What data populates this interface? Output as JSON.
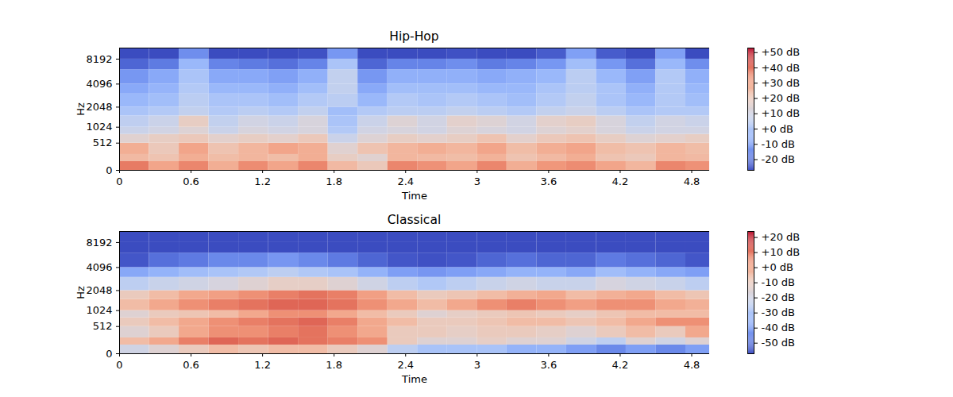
{
  "chart_data": [
    {
      "type": "heatmap",
      "title": "Hip-Hop",
      "x_label": "Time",
      "y_label": "Hz",
      "xlim": [
        0,
        4.95
      ],
      "xticks": [
        0,
        0.6,
        1.2,
        1.8,
        2.4,
        3,
        3.6,
        4.2,
        4.8
      ],
      "ylim": [
        0,
        11025
      ],
      "yticks": [
        0,
        512,
        1024,
        2048,
        4096,
        8192
      ],
      "log": "y",
      "color": "coolwarm",
      "cells": {
        "x_edges": [
          0,
          0.25,
          0.5,
          0.75,
          1.0,
          1.25,
          1.5,
          1.75,
          2.0,
          2.25,
          2.5,
          2.75,
          3.0,
          3.25,
          3.5,
          3.75,
          4.0,
          4.25,
          4.5,
          4.75,
          4.95
        ],
        "y_edges": [
          0,
          128,
          256,
          512,
          768,
          1024,
          1536,
          2048,
          3072,
          4096,
          6144,
          8192,
          11025
        ],
        "values": [
          [
            38,
            30,
            36,
            28,
            35,
            30,
            36,
            25,
            20,
            36,
            34,
            30,
            36,
            28,
            33,
            35,
            30,
            26,
            36,
            34
          ],
          [
            25,
            22,
            28,
            24,
            26,
            24,
            28,
            18,
            15,
            26,
            25,
            24,
            27,
            22,
            25,
            28,
            22,
            20,
            26,
            25
          ],
          [
            28,
            20,
            30,
            22,
            26,
            30,
            28,
            15,
            22,
            26,
            28,
            26,
            30,
            24,
            28,
            30,
            24,
            22,
            26,
            24
          ],
          [
            15,
            18,
            20,
            16,
            18,
            16,
            20,
            8,
            14,
            18,
            16,
            18,
            22,
            16,
            20,
            22,
            18,
            14,
            16,
            18
          ],
          [
            8,
            10,
            14,
            8,
            12,
            10,
            12,
            2,
            10,
            12,
            10,
            14,
            12,
            10,
            14,
            16,
            12,
            8,
            10,
            10
          ],
          [
            5,
            8,
            18,
            6,
            10,
            8,
            12,
            0,
            8,
            14,
            10,
            16,
            14,
            10,
            16,
            18,
            12,
            6,
            10,
            8
          ],
          [
            0,
            2,
            6,
            2,
            4,
            2,
            6,
            -2,
            2,
            4,
            4,
            6,
            4,
            2,
            6,
            8,
            4,
            0,
            2,
            2
          ],
          [
            -4,
            -2,
            4,
            0,
            0,
            -2,
            2,
            4,
            -4,
            2,
            0,
            2,
            0,
            -2,
            2,
            6,
            0,
            -4,
            2,
            -2
          ],
          [
            -8,
            -5,
            2,
            -4,
            -4,
            -6,
            -2,
            6,
            -8,
            -2,
            -2,
            -2,
            -4,
            -4,
            0,
            4,
            0,
            -6,
            2,
            -4
          ],
          [
            -12,
            -8,
            0,
            -8,
            -8,
            -10,
            -6,
            6,
            -12,
            -6,
            -6,
            -6,
            -8,
            -6,
            -4,
            4,
            -4,
            -10,
            2,
            -6
          ],
          [
            -22,
            -18,
            -4,
            -16,
            -18,
            -20,
            -16,
            0,
            -22,
            -16,
            -16,
            -14,
            -18,
            -16,
            -12,
            -2,
            -12,
            -20,
            -4,
            -14
          ],
          [
            -27,
            -27,
            -14,
            -27,
            -27,
            -27,
            -26,
            -12,
            -27,
            -27,
            -27,
            -26,
            -27,
            -27,
            -24,
            -10,
            -24,
            -27,
            -10,
            -27
          ]
        ]
      },
      "colorbar": {
        "range": [
          -27,
          53
        ],
        "ticks": [
          {
            "value": 50,
            "label": "+50 dB"
          },
          {
            "value": 40,
            "label": "+40 dB"
          },
          {
            "value": 30,
            "label": "+30 dB"
          },
          {
            "value": 20,
            "label": "+20 dB"
          },
          {
            "value": 10,
            "label": "+10 dB"
          },
          {
            "value": 0,
            "label": "+0 dB"
          },
          {
            "value": -10,
            "label": "-10 dB"
          },
          {
            "value": -20,
            "label": "-20 dB"
          }
        ]
      }
    },
    {
      "type": "heatmap",
      "title": "Classical",
      "x_label": "Time",
      "y_label": "Hz",
      "xlim": [
        0,
        4.95
      ],
      "xticks": [
        0,
        0.6,
        1.2,
        1.8,
        2.4,
        3,
        3.6,
        4.2,
        4.8
      ],
      "ylim": [
        0,
        11025
      ],
      "yticks": [
        0,
        512,
        1024,
        2048,
        4096,
        8192
      ],
      "log": "y",
      "color": "coolwarm",
      "cells": {
        "x_edges": [
          0,
          0.25,
          0.5,
          0.75,
          1.0,
          1.25,
          1.5,
          1.75,
          2.0,
          2.25,
          2.5,
          2.75,
          3.0,
          3.25,
          3.5,
          3.75,
          4.0,
          4.25,
          4.5,
          4.75,
          4.95
        ],
        "y_edges": [
          0,
          128,
          256,
          512,
          768,
          1024,
          1536,
          2048,
          3072,
          4096,
          6144,
          8192,
          11025
        ],
        "values": [
          [
            -20,
            -15,
            -10,
            -5,
            -8,
            -5,
            -5,
            -10,
            -15,
            -25,
            -30,
            -30,
            -30,
            -35,
            -35,
            -40,
            -45,
            -40,
            -45,
            -40
          ],
          [
            -5,
            0,
            8,
            12,
            10,
            12,
            10,
            8,
            5,
            -10,
            -15,
            -15,
            -12,
            -15,
            -15,
            -20,
            -25,
            -15,
            -20,
            -15
          ],
          [
            -15,
            -10,
            0,
            5,
            5,
            8,
            10,
            5,
            0,
            -10,
            -10,
            -12,
            -10,
            -10,
            -12,
            -15,
            -10,
            -5,
            -10,
            0
          ],
          [
            -10,
            -5,
            0,
            5,
            8,
            10,
            12,
            8,
            0,
            -5,
            -10,
            -10,
            -8,
            -5,
            -5,
            -8,
            -5,
            0,
            5,
            5
          ],
          [
            -15,
            -10,
            -8,
            -5,
            0,
            5,
            5,
            0,
            -5,
            -10,
            -15,
            -12,
            -10,
            -8,
            -10,
            -12,
            -8,
            -5,
            -5,
            -5
          ],
          [
            -5,
            0,
            5,
            8,
            10,
            12,
            12,
            10,
            5,
            0,
            -5,
            0,
            5,
            8,
            5,
            2,
            5,
            5,
            0,
            -2
          ],
          [
            -10,
            -5,
            0,
            2,
            5,
            8,
            10,
            8,
            2,
            -5,
            -10,
            -8,
            -5,
            -2,
            0,
            -5,
            -2,
            0,
            -5,
            -8
          ],
          [
            -25,
            -22,
            -20,
            -18,
            -15,
            -12,
            -12,
            -15,
            -20,
            -25,
            -28,
            -25,
            -22,
            -20,
            -22,
            -22,
            -18,
            -20,
            -22,
            -25
          ],
          [
            -38,
            -35,
            -32,
            -30,
            -28,
            -25,
            -28,
            -30,
            -35,
            -40,
            -42,
            -40,
            -38,
            -35,
            -35,
            -38,
            -32,
            -35,
            -38,
            -40
          ],
          [
            -55,
            -50,
            -48,
            -45,
            -45,
            -42,
            -45,
            -48,
            -52,
            -55,
            -56,
            -55,
            -52,
            -50,
            -52,
            -52,
            -48,
            -50,
            -52,
            -55
          ],
          [
            -57,
            -57,
            -57,
            -57,
            -57,
            -57,
            -57,
            -57,
            -57,
            -57,
            -57,
            -57,
            -57,
            -57,
            -57,
            -57,
            -57,
            -57,
            -57,
            -57
          ],
          [
            -57,
            -57,
            -57,
            -57,
            -57,
            -57,
            -57,
            -57,
            -57,
            -57,
            -57,
            -57,
            -57,
            -57,
            -57,
            -57,
            -57,
            -57,
            -57,
            -57
          ]
        ]
      },
      "colorbar": {
        "range": [
          -57,
          24
        ],
        "ticks": [
          {
            "value": 20,
            "label": "+20 dB"
          },
          {
            "value": 10,
            "label": "+10 dB"
          },
          {
            "value": 0,
            "label": "+0 dB"
          },
          {
            "value": -10,
            "label": "-10 dB"
          },
          {
            "value": -20,
            "label": "-20 dB"
          },
          {
            "value": -30,
            "label": "-30 dB"
          },
          {
            "value": -40,
            "label": "-40 dB"
          },
          {
            "value": -50,
            "label": "-50 dB"
          }
        ]
      }
    }
  ]
}
